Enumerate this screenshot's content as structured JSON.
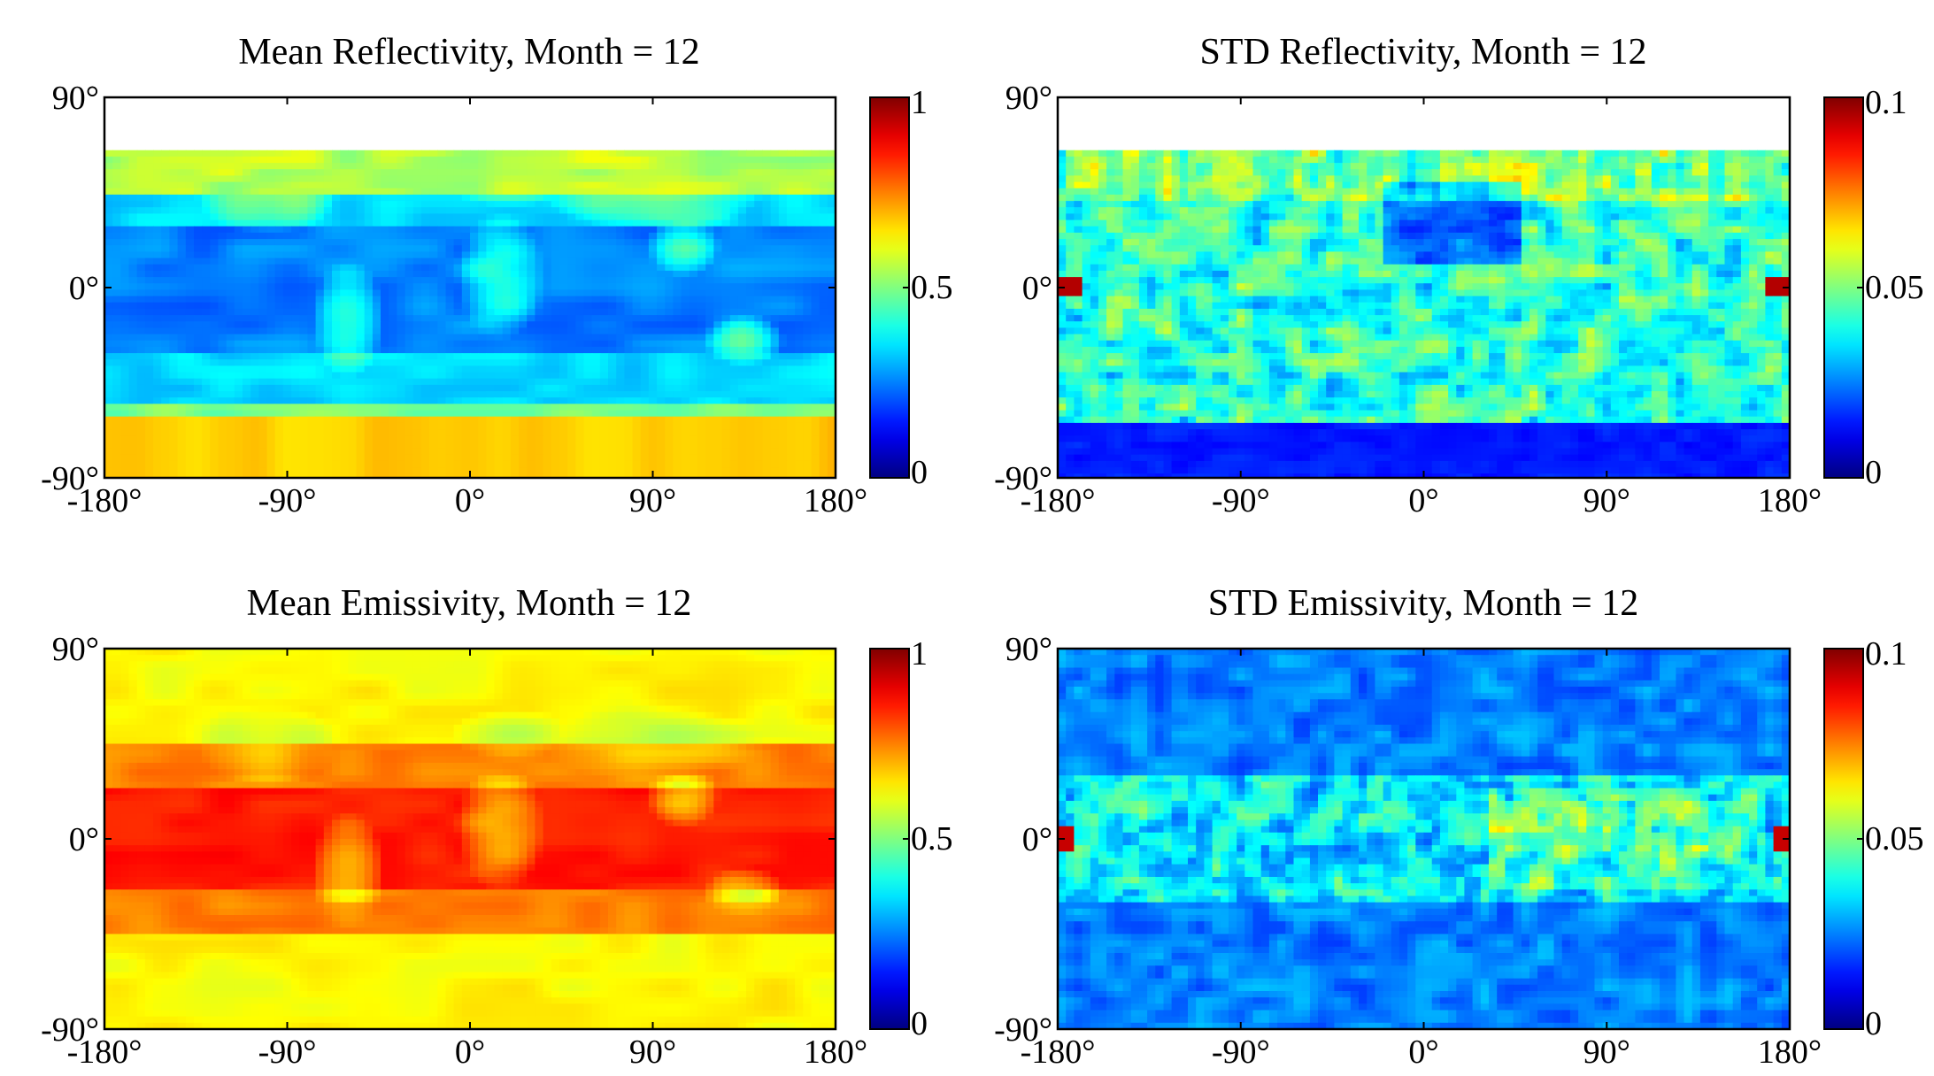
{
  "chart_data": [
    {
      "type": "heatmap",
      "title": "Mean Reflectivity, Month = 12",
      "x_ticks": [
        "-180°",
        "-90°",
        "0°",
        "90°",
        "180°"
      ],
      "y_ticks": [
        "90°",
        "0°",
        "-90°"
      ],
      "xlim": [
        -180,
        180
      ],
      "ylim": [
        -90,
        90
      ],
      "data_lat_range": [
        -90,
        65
      ],
      "colormap": "jet",
      "colorbar_ticks": [
        "1",
        "0.5",
        "0"
      ],
      "colorbar_range": [
        0,
        1
      ],
      "field": "mean_reflectivity"
    },
    {
      "type": "heatmap",
      "title": "STD Reflectivity, Month = 12",
      "x_ticks": [
        "-180°",
        "-90°",
        "0°",
        "90°",
        "180°"
      ],
      "y_ticks": [
        "90°",
        "0°",
        "-90°"
      ],
      "xlim": [
        -180,
        180
      ],
      "ylim": [
        -90,
        90
      ],
      "data_lat_range": [
        -90,
        65
      ],
      "colormap": "jet",
      "colorbar_ticks": [
        "0.1",
        "0.05",
        "0"
      ],
      "colorbar_range": [
        0,
        0.1
      ],
      "field": "std_reflectivity"
    },
    {
      "type": "heatmap",
      "title": "Mean Emissivity, Month = 12",
      "x_ticks": [
        "-180°",
        "-90°",
        "0°",
        "90°",
        "180°"
      ],
      "y_ticks": [
        "90°",
        "0°",
        "-90°"
      ],
      "xlim": [
        -180,
        180
      ],
      "ylim": [
        -90,
        90
      ],
      "data_lat_range": [
        -90,
        90
      ],
      "colormap": "jet",
      "colorbar_ticks": [
        "1",
        "0.5",
        "0"
      ],
      "colorbar_range": [
        0,
        1
      ],
      "field": "mean_emissivity"
    },
    {
      "type": "heatmap",
      "title": "STD Emissivity, Month = 12",
      "x_ticks": [
        "-180°",
        "-90°",
        "0°",
        "90°",
        "180°"
      ],
      "y_ticks": [
        "90°",
        "0°",
        "-90°"
      ],
      "xlim": [
        -180,
        180
      ],
      "ylim": [
        -90,
        90
      ],
      "data_lat_range": [
        -90,
        90
      ],
      "colormap": "jet",
      "colorbar_ticks": [
        "0.1",
        "0.05",
        "0"
      ],
      "colorbar_range": [
        0,
        0.1
      ],
      "field": "std_emissivity"
    }
  ]
}
